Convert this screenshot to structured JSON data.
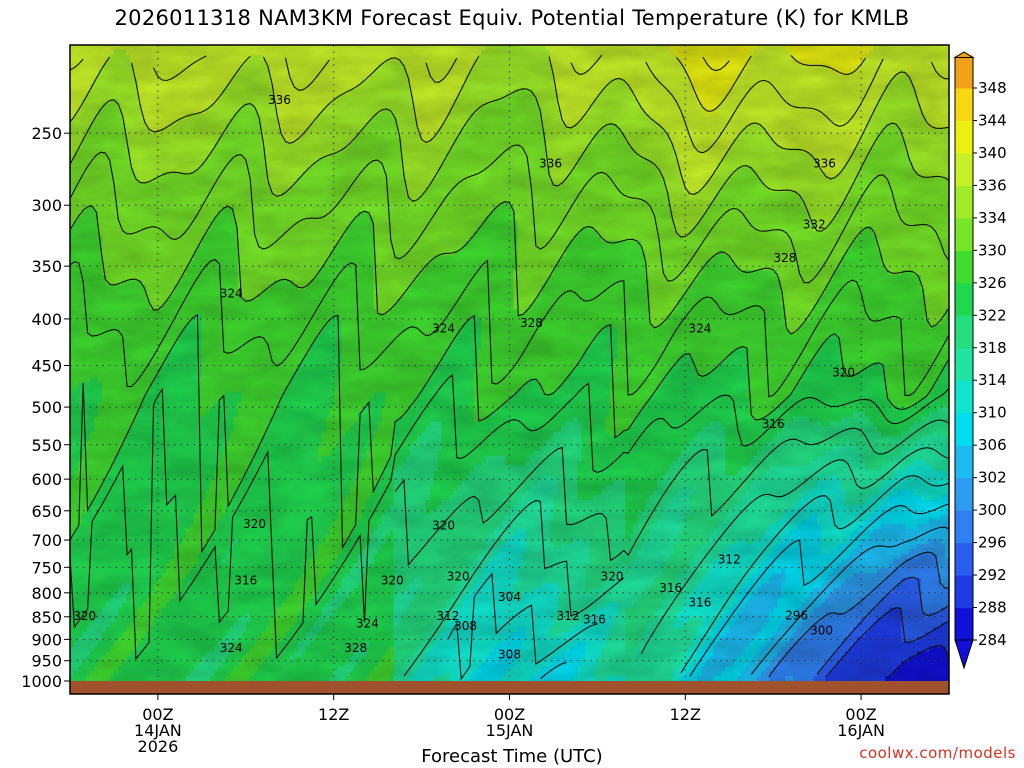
{
  "chart_data": {
    "type": "heatmap",
    "title": "2026011318 NAM3KM Forecast Equiv. Potential Temperature (K) for KMLB",
    "xlabel": "Forecast Time (UTC)",
    "ylabel": "",
    "y_ticks": [
      250,
      300,
      350,
      400,
      450,
      500,
      550,
      600,
      650,
      700,
      750,
      800,
      850,
      900,
      950,
      1000
    ],
    "ylim": [
      1000,
      200
    ],
    "y_scale": "log-pressure",
    "x_ticks": [
      {
        "hour": 6,
        "label1": "00Z",
        "label2": "14JAN",
        "label3": "2026"
      },
      {
        "hour": 18,
        "label1": "12Z",
        "label2": "",
        "label3": ""
      },
      {
        "hour": 30,
        "label1": "00Z",
        "label2": "15JAN",
        "label3": ""
      },
      {
        "hour": 42,
        "label1": "12Z",
        "label2": "",
        "label3": ""
      },
      {
        "hour": 54,
        "label1": "00Z",
        "label2": "16JAN",
        "label3": ""
      }
    ],
    "xlim_hours_from_init": [
      0,
      60
    ],
    "colorbar_levels": [
      284,
      288,
      292,
      296,
      300,
      302,
      306,
      310,
      314,
      318,
      322,
      326,
      330,
      334,
      336,
      340,
      344,
      348
    ],
    "colorbar_colors": [
      "#1010d8",
      "#1e3ce6",
      "#2a5ef0",
      "#2f80f2",
      "#2e9cf0",
      "#1cbcf2",
      "#00dcf0",
      "#10e6cf",
      "#20e4a0",
      "#24de80",
      "#20d850",
      "#40dc30",
      "#78e628",
      "#a0ec28",
      "#c8f028",
      "#eaf010",
      "#f8d810",
      "#f4a018"
    ],
    "contour_labels": [
      {
        "text": "336",
        "t": 14.3,
        "p": 230
      },
      {
        "text": "336",
        "t": 32.8,
        "p": 270
      },
      {
        "text": "336",
        "t": 51.5,
        "p": 270
      },
      {
        "text": "332",
        "t": 50.8,
        "p": 315
      },
      {
        "text": "328",
        "t": 48.8,
        "p": 343
      },
      {
        "text": "324",
        "t": 11.0,
        "p": 375
      },
      {
        "text": "328",
        "t": 31.5,
        "p": 404
      },
      {
        "text": "324",
        "t": 25.5,
        "p": 410
      },
      {
        "text": "324",
        "t": 43.0,
        "p": 410
      },
      {
        "text": "320",
        "t": 52.8,
        "p": 458
      },
      {
        "text": "316",
        "t": 48.0,
        "p": 522
      },
      {
        "text": "320",
        "t": 12.6,
        "p": 672
      },
      {
        "text": "320",
        "t": 25.5,
        "p": 675
      },
      {
        "text": "312",
        "t": 45.0,
        "p": 735
      },
      {
        "text": "320",
        "t": 26.5,
        "p": 768
      },
      {
        "text": "320",
        "t": 37.0,
        "p": 768
      },
      {
        "text": "316",
        "t": 12.0,
        "p": 775
      },
      {
        "text": "320",
        "t": 22.0,
        "p": 775
      },
      {
        "text": "316",
        "t": 41.0,
        "p": 790
      },
      {
        "text": "304",
        "t": 30.0,
        "p": 808
      },
      {
        "text": "316",
        "t": 43.0,
        "p": 820
      },
      {
        "text": "296",
        "t": 49.6,
        "p": 847
      },
      {
        "text": "312",
        "t": 25.8,
        "p": 848
      },
      {
        "text": "312",
        "t": 34.0,
        "p": 848
      },
      {
        "text": "316",
        "t": 35.8,
        "p": 856
      },
      {
        "text": "320",
        "t": 1.0,
        "p": 848
      },
      {
        "text": "324",
        "t": 20.3,
        "p": 865
      },
      {
        "text": "308",
        "t": 27.0,
        "p": 870
      },
      {
        "text": "300",
        "t": 51.3,
        "p": 880
      },
      {
        "text": "324",
        "t": 11.0,
        "p": 920
      },
      {
        "text": "328",
        "t": 19.5,
        "p": 920
      },
      {
        "text": "308",
        "t": 30.0,
        "p": 935
      }
    ]
  },
  "credit": "coolwx.com/models"
}
